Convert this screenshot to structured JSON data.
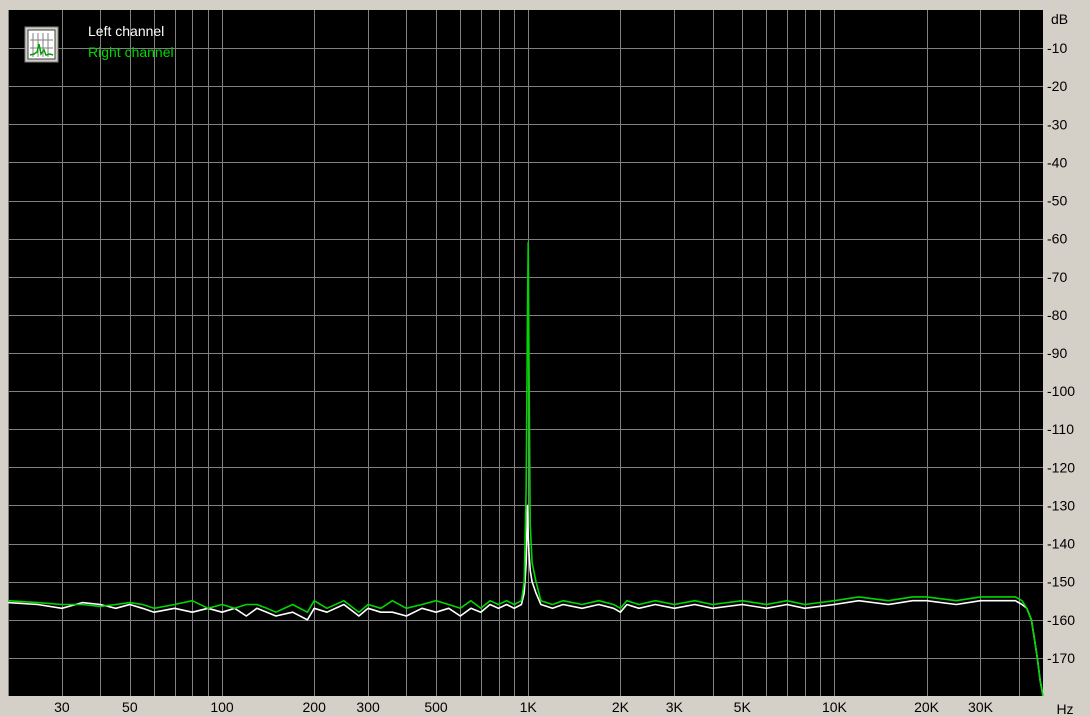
{
  "chart_data": {
    "type": "line",
    "title": "",
    "xlabel": "",
    "ylabel": "",
    "x_unit_label": "Hz",
    "y_unit_label": "dB",
    "x_scale": "log",
    "xlim": [
      20,
      48000
    ],
    "ylim": [
      -180,
      0
    ],
    "grid": true,
    "legend_position": "top-left",
    "background_color": "#000000",
    "grid_color": "#808080",
    "panel_color": "#d4d0c8",
    "x_ticks": [
      {
        "value": 30,
        "label": "30"
      },
      {
        "value": 50,
        "label": "50"
      },
      {
        "value": 100,
        "label": "100"
      },
      {
        "value": 200,
        "label": "200"
      },
      {
        "value": 300,
        "label": "300"
      },
      {
        "value": 500,
        "label": "500"
      },
      {
        "value": 1000,
        "label": "1K"
      },
      {
        "value": 2000,
        "label": "2K"
      },
      {
        "value": 3000,
        "label": "3K"
      },
      {
        "value": 5000,
        "label": "5K"
      },
      {
        "value": 10000,
        "label": "10K"
      },
      {
        "value": 20000,
        "label": "20K"
      },
      {
        "value": 30000,
        "label": "30K"
      }
    ],
    "y_ticks": [
      {
        "value": -10,
        "label": "-10"
      },
      {
        "value": -20,
        "label": "-20"
      },
      {
        "value": -30,
        "label": "-30"
      },
      {
        "value": -40,
        "label": "-40"
      },
      {
        "value": -50,
        "label": "-50"
      },
      {
        "value": -60,
        "label": "-60"
      },
      {
        "value": -70,
        "label": "-70"
      },
      {
        "value": -80,
        "label": "-80"
      },
      {
        "value": -90,
        "label": "-90"
      },
      {
        "value": -100,
        "label": "-100"
      },
      {
        "value": -110,
        "label": "-110"
      },
      {
        "value": -120,
        "label": "-120"
      },
      {
        "value": -130,
        "label": "-130"
      },
      {
        "value": -140,
        "label": "-140"
      },
      {
        "value": -150,
        "label": "-150"
      },
      {
        "value": -160,
        "label": "-160"
      },
      {
        "value": -170,
        "label": "-170"
      }
    ],
    "series": [
      {
        "name": "Left channel",
        "color": "#ffffff",
        "x": [
          20,
          25,
          30,
          35,
          40,
          45,
          50,
          55,
          60,
          70,
          80,
          90,
          100,
          110,
          120,
          130,
          140,
          150,
          170,
          190,
          200,
          220,
          250,
          280,
          300,
          330,
          360,
          400,
          450,
          500,
          550,
          600,
          650,
          700,
          750,
          800,
          850,
          900,
          950,
          970,
          985,
          995,
          1000,
          1005,
          1015,
          1030,
          1060,
          1100,
          1200,
          1300,
          1500,
          1700,
          1900,
          2000,
          2100,
          2300,
          2600,
          3000,
          3500,
          4000,
          5000,
          6000,
          7000,
          8000,
          10000,
          12000,
          15000,
          18000,
          20000,
          25000,
          30000,
          35000,
          39000,
          41000,
          42500,
          44000,
          45000,
          46000,
          47000,
          48000
        ],
        "y": [
          -155.5,
          -156,
          -157,
          -155.5,
          -156,
          -157,
          -156,
          -157,
          -158,
          -157,
          -158,
          -157,
          -158,
          -157,
          -159,
          -157,
          -158,
          -159,
          -158,
          -160,
          -157,
          -158,
          -156,
          -159,
          -157,
          -158,
          -158,
          -159,
          -157,
          -158,
          -157,
          -159,
          -157,
          -158,
          -156,
          -157,
          -156,
          -157,
          -156,
          -153,
          -145,
          -130,
          -138,
          -142,
          -147,
          -150,
          -153,
          -156,
          -157,
          -156,
          -157,
          -156,
          -157,
          -158,
          -156,
          -157,
          -156,
          -157,
          -156,
          -157,
          -156,
          -157,
          -156,
          -157,
          -156,
          -155,
          -156,
          -155,
          -155,
          -156,
          -155,
          -155,
          -155,
          -156,
          -157,
          -160,
          -165,
          -170,
          -176,
          -181
        ]
      },
      {
        "name": "Right channel",
        "color": "#00d700",
        "x": [
          20,
          25,
          30,
          35,
          40,
          45,
          50,
          55,
          60,
          70,
          80,
          90,
          100,
          110,
          120,
          130,
          140,
          150,
          170,
          190,
          200,
          220,
          250,
          280,
          300,
          330,
          360,
          400,
          450,
          500,
          550,
          600,
          650,
          700,
          750,
          800,
          850,
          900,
          950,
          970,
          985,
          995,
          1000,
          1005,
          1015,
          1030,
          1060,
          1100,
          1200,
          1300,
          1500,
          1700,
          1900,
          2000,
          2100,
          2300,
          2600,
          3000,
          3500,
          4000,
          5000,
          6000,
          7000,
          8000,
          10000,
          12000,
          15000,
          18000,
          20000,
          25000,
          30000,
          35000,
          39000,
          41000,
          42500,
          44000,
          45000,
          46000,
          47000,
          48000
        ],
        "y": [
          -155,
          -155.5,
          -156,
          -156,
          -156.5,
          -156,
          -155.5,
          -156,
          -157,
          -156,
          -155,
          -157,
          -156,
          -157,
          -156,
          -156,
          -157,
          -158,
          -156,
          -158,
          -155,
          -157,
          -155,
          -158,
          -156,
          -157,
          -155,
          -157,
          -156,
          -155,
          -156,
          -157,
          -155,
          -157,
          -155,
          -156,
          -155,
          -156,
          -155,
          -150,
          -125,
          -80,
          -61,
          -90,
          -135,
          -145,
          -150,
          -155,
          -156,
          -155,
          -156,
          -155,
          -156,
          -157,
          -155,
          -156,
          -155,
          -156,
          -155,
          -156,
          -155,
          -156,
          -155,
          -156,
          -155,
          -154,
          -155,
          -154,
          -154,
          -155,
          -154,
          -154,
          -154,
          -155,
          -157,
          -160,
          -165,
          -170,
          -176,
          -181
        ]
      }
    ]
  }
}
